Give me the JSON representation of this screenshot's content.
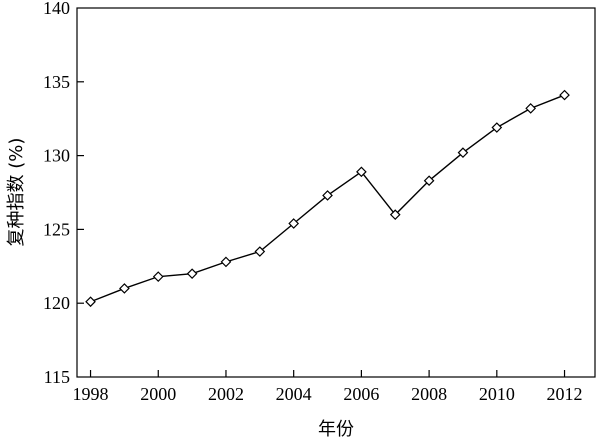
{
  "chart_data": {
    "type": "line",
    "title": "",
    "xlabel": "年份",
    "ylabel": "复种指数 (%)",
    "xlim": [
      1997.6,
      2012.9
    ],
    "ylim": [
      115,
      140
    ],
    "x_ticks": [
      1998,
      2000,
      2002,
      2004,
      2006,
      2008,
      2010,
      2012
    ],
    "y_ticks": [
      115,
      120,
      125,
      130,
      135,
      140
    ],
    "grid": false,
    "legend": "none",
    "marker": "diamond",
    "line_color": "#000000",
    "series": [
      {
        "x": [
          1998,
          1999,
          2000,
          2001,
          2002,
          2003,
          2004,
          2005,
          2006,
          2007,
          2008,
          2009,
          2010,
          2011,
          2012
        ],
        "values": [
          120.1,
          121.0,
          121.8,
          122.0,
          122.8,
          123.5,
          125.4,
          127.3,
          128.9,
          126.0,
          128.3,
          130.2,
          131.9,
          133.2,
          134.1
        ]
      }
    ]
  }
}
